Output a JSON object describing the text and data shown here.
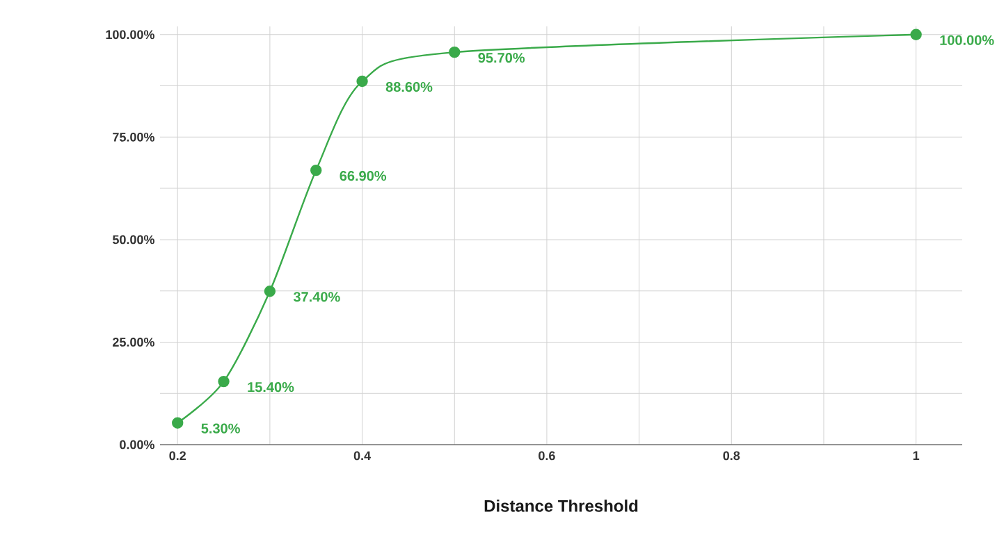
{
  "chart_data": {
    "type": "line",
    "xlabel": "Distance Threshold",
    "x": [
      0.2,
      0.25,
      0.3,
      0.35,
      0.4,
      0.5,
      1
    ],
    "series": [
      {
        "color": "#3aaa4a",
        "values": [
          5.3,
          15.4,
          37.4,
          66.9,
          88.6,
          95.7,
          100
        ],
        "value_labels": [
          "5.30%",
          "15.40%",
          "37.40%",
          "66.90%",
          "88.60%",
          "95.70%",
          "100.00%"
        ]
      }
    ],
    "xlim": [
      0.181,
      1.05
    ],
    "ylim": [
      0,
      102
    ],
    "xticks": [
      0.2,
      {
        "value": 0.3,
        "label": null
      },
      0.4,
      {
        "value": 0.5,
        "label": null
      },
      0.6,
      {
        "value": 0.7,
        "label": null
      },
      0.8,
      {
        "value": 0.9,
        "label": null
      },
      1
    ],
    "yticks": [
      {
        "value": 0,
        "label": "0.00%"
      },
      {
        "value": 12.5,
        "label": null
      },
      {
        "value": 25,
        "label": "25.00%"
      },
      {
        "value": 37.5,
        "label": null
      },
      {
        "value": 50,
        "label": "50.00%"
      },
      {
        "value": 62.5,
        "label": null
      },
      {
        "value": 75,
        "label": "75.00%"
      },
      {
        "value": 87.5,
        "label": null
      },
      {
        "value": 100,
        "label": "100.00%"
      }
    ],
    "grid": true,
    "marker": "circle"
  }
}
